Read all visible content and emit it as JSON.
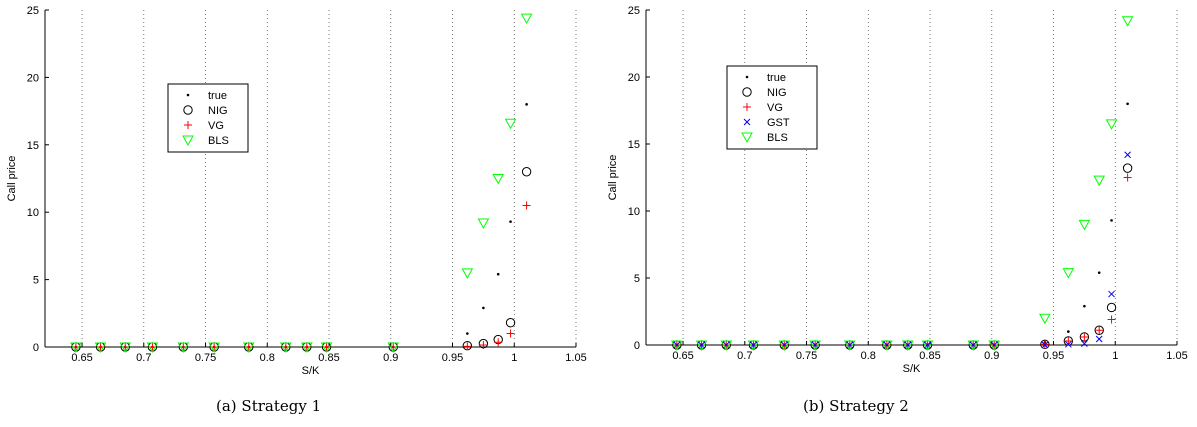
{
  "captions": [
    "(a) Strategy 1",
    "(b) Strategy 2"
  ],
  "chart_data": [
    {
      "type": "scatter",
      "xlabel": "S/K",
      "ylabel": "Call price",
      "xlim": [
        0.62,
        1.05
      ],
      "ylim": [
        0,
        25
      ],
      "xticks": [
        "0.65",
        "0.7",
        "0.75",
        "0.8",
        "0.85",
        "0.9",
        "0.95",
        "1",
        "1.05"
      ],
      "yticks": [
        "0",
        "5",
        "10",
        "15",
        "20",
        "25"
      ],
      "grid": "vertical dotted",
      "legend_position": "upper-left",
      "series": [
        {
          "name": "true",
          "marker": "dot",
          "color": "#000000",
          "x": [
            0.645,
            0.665,
            0.685,
            0.707,
            0.732,
            0.757,
            0.785,
            0.815,
            0.832,
            0.848,
            0.902,
            0.962,
            0.975,
            0.987,
            0.997,
            1.01
          ],
          "y": [
            0,
            0,
            0,
            0,
            0,
            0,
            0,
            0,
            0,
            0,
            0,
            1.0,
            2.9,
            5.4,
            9.3,
            18.0
          ]
        },
        {
          "name": "NIG",
          "marker": "circle",
          "color": "#000000",
          "x": [
            0.645,
            0.665,
            0.685,
            0.707,
            0.732,
            0.757,
            0.785,
            0.815,
            0.832,
            0.848,
            0.902,
            0.962,
            0.975,
            0.987,
            0.997,
            1.01
          ],
          "y": [
            0,
            0,
            0,
            0,
            0,
            0,
            0,
            0,
            0,
            0,
            0,
            0.1,
            0.25,
            0.55,
            1.8,
            13.0
          ]
        },
        {
          "name": "VG",
          "marker": "plus",
          "color": "#ff0000",
          "x": [
            0.645,
            0.665,
            0.685,
            0.707,
            0.732,
            0.757,
            0.785,
            0.815,
            0.832,
            0.848,
            0.902,
            0.962,
            0.975,
            0.987,
            0.997,
            1.01
          ],
          "y": [
            0,
            0,
            0,
            0,
            0,
            0,
            0,
            0,
            0,
            0,
            0,
            0.05,
            0.15,
            0.35,
            1.0,
            10.5
          ]
        },
        {
          "name": "BLS",
          "marker": "triangle-down",
          "color": "#00ff00",
          "x": [
            0.645,
            0.665,
            0.685,
            0.707,
            0.732,
            0.757,
            0.785,
            0.815,
            0.832,
            0.848,
            0.902,
            0.962,
            0.975,
            0.987,
            0.997,
            1.01
          ],
          "y": [
            0,
            0,
            0,
            0,
            0,
            0,
            0,
            0,
            0,
            0,
            0,
            5.5,
            9.2,
            12.5,
            16.6,
            24.4
          ]
        }
      ]
    },
    {
      "type": "scatter",
      "xlabel": "S/K",
      "ylabel": "Call price",
      "xlim": [
        0.62,
        1.05
      ],
      "ylim": [
        0,
        25
      ],
      "xticks": [
        "0.65",
        "0.7",
        "0.75",
        "0.8",
        "0.85",
        "0.9",
        "0.95",
        "1",
        "1.05"
      ],
      "yticks": [
        "0",
        "5",
        "10",
        "15",
        "20",
        "25"
      ],
      "grid": "vertical dotted",
      "legend_position": "upper-left",
      "series": [
        {
          "name": "true",
          "marker": "dot",
          "color": "#000000",
          "x": [
            0.645,
            0.665,
            0.685,
            0.707,
            0.732,
            0.757,
            0.785,
            0.815,
            0.832,
            0.848,
            0.885,
            0.902,
            0.943,
            0.962,
            0.975,
            0.987,
            0.997,
            1.01
          ],
          "y": [
            0,
            0,
            0,
            0,
            0,
            0,
            0,
            0,
            0,
            0,
            0,
            0,
            0.2,
            1.0,
            2.9,
            5.4,
            9.3,
            18.0
          ]
        },
        {
          "name": "NIG",
          "marker": "circle",
          "color": "#000000",
          "x": [
            0.645,
            0.665,
            0.685,
            0.707,
            0.732,
            0.757,
            0.785,
            0.815,
            0.832,
            0.848,
            0.885,
            0.902,
            0.943,
            0.962,
            0.975,
            0.987,
            0.997,
            1.01
          ],
          "y": [
            0,
            0,
            0,
            0,
            0,
            0,
            0,
            0,
            0,
            0,
            0,
            0,
            0.05,
            0.3,
            0.6,
            1.1,
            2.8,
            13.2
          ]
        },
        {
          "name": "VG",
          "marker": "plus",
          "color": "#ff0000",
          "x": [
            0.645,
            0.665,
            0.685,
            0.707,
            0.732,
            0.757,
            0.785,
            0.815,
            0.832,
            0.848,
            0.885,
            0.902,
            0.943,
            0.962,
            0.975,
            0.987,
            0.997,
            1.01
          ],
          "y": [
            0,
            0,
            0,
            0,
            0,
            0,
            0,
            0,
            0,
            0,
            0,
            0,
            0.05,
            0.3,
            0.6,
            1.1,
            1.9,
            12.5
          ]
        },
        {
          "name": "GST",
          "marker": "x",
          "color": "#0000ff",
          "x": [
            0.645,
            0.665,
            0.685,
            0.707,
            0.732,
            0.757,
            0.785,
            0.815,
            0.832,
            0.848,
            0.885,
            0.902,
            0.943,
            0.962,
            0.975,
            0.987,
            0.997,
            1.01
          ],
          "y": [
            0,
            0,
            0,
            0,
            0,
            0,
            0,
            0,
            0,
            0,
            0,
            0,
            0,
            0.05,
            0.1,
            0.45,
            3.8,
            14.2
          ]
        },
        {
          "name": "BLS",
          "marker": "triangle-down",
          "color": "#00ff00",
          "x": [
            0.645,
            0.665,
            0.685,
            0.707,
            0.732,
            0.757,
            0.785,
            0.815,
            0.832,
            0.848,
            0.885,
            0.902,
            0.943,
            0.962,
            0.975,
            0.987,
            0.997,
            1.01
          ],
          "y": [
            0,
            0,
            0,
            0,
            0,
            0,
            0,
            0,
            0,
            0,
            0,
            0,
            2.0,
            5.4,
            9.0,
            12.3,
            16.5,
            24.2
          ]
        }
      ]
    }
  ]
}
